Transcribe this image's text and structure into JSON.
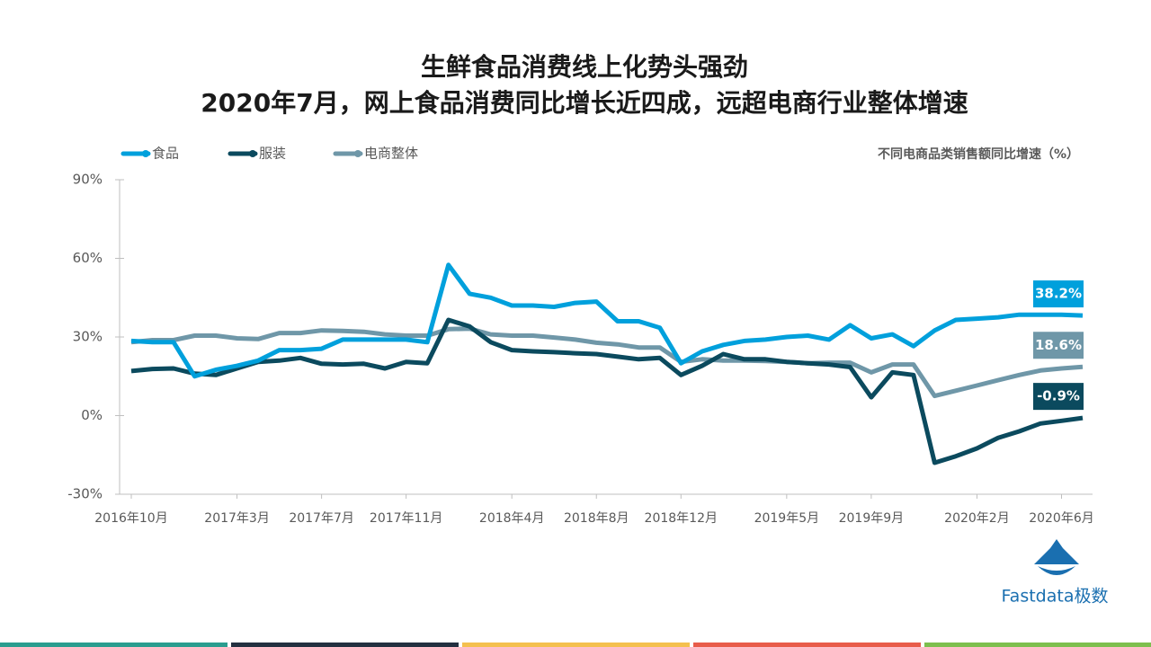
{
  "chart_data": {
    "type": "line",
    "title": "生鲜食品消费线上化势头强劲",
    "subtitle": "2020年7月，网上食品消费同比增长近四成，远超电商行业整体增速",
    "axis_note": "不同电商品类销售额同比增速（%）",
    "brand": "Fastdata极数",
    "categories": [
      "2016年10月",
      null,
      null,
      null,
      null,
      "2017年3月",
      null,
      null,
      null,
      "2017年7月",
      null,
      null,
      null,
      "2017年11月",
      null,
      null,
      null,
      null,
      "2018年4月",
      null,
      null,
      null,
      "2018年8月",
      null,
      null,
      null,
      "2018年12月",
      null,
      null,
      null,
      null,
      "2019年5月",
      null,
      null,
      null,
      "2019年9月",
      null,
      null,
      null,
      null,
      "2020年2月",
      null,
      null,
      null,
      "2020年6月",
      null
    ],
    "series": [
      {
        "name": "食品",
        "color": "#00a0dc",
        "values": [
          28.5,
          28,
          28,
          15,
          17.5,
          19,
          21,
          25,
          25,
          25.5,
          29,
          29,
          29,
          29,
          28,
          57.5,
          46.5,
          45,
          42,
          42,
          41.5,
          43,
          43.5,
          36,
          36,
          33.5,
          20,
          24.5,
          27,
          28.5,
          29,
          30,
          30.5,
          29,
          34.5,
          29.5,
          31,
          26.5,
          32.5,
          36.5,
          37,
          37.5,
          38.5,
          38.5,
          38.5,
          38.2
        ],
        "value_labels": [
          null,
          null,
          null,
          null,
          null,
          null,
          null,
          null,
          null,
          null,
          null,
          null,
          null,
          null,
          null,
          null,
          null,
          null,
          null,
          null,
          null,
          null,
          null,
          null,
          null,
          null,
          null,
          null,
          null,
          null,
          null,
          null,
          null,
          null,
          null,
          null,
          null,
          null,
          null,
          null,
          null,
          null,
          null,
          null,
          null,
          "38.2%"
        ]
      },
      {
        "name": "服装",
        "color": "#0b4a5e",
        "values": [
          17,
          17.8,
          18,
          16,
          15.5,
          18,
          20.5,
          21,
          22,
          19.8,
          19.5,
          19.8,
          18,
          20.5,
          20,
          36.5,
          34,
          28,
          25,
          24.5,
          24.2,
          23.8,
          23.5,
          22.5,
          21.5,
          22,
          15.5,
          19,
          23.5,
          21.5,
          21.5,
          20.5,
          20,
          19.5,
          18.5,
          7,
          16.5,
          15.5,
          -18,
          -15.5,
          -12.5,
          -8.5,
          -6,
          -3,
          -2,
          -0.9
        ],
        "value_labels": [
          null,
          null,
          null,
          null,
          null,
          null,
          null,
          null,
          null,
          null,
          null,
          null,
          null,
          null,
          null,
          null,
          null,
          null,
          null,
          null,
          null,
          null,
          null,
          null,
          null,
          null,
          null,
          null,
          null,
          null,
          null,
          null,
          null,
          null,
          null,
          null,
          null,
          null,
          null,
          null,
          null,
          null,
          null,
          null,
          null,
          "-0.9%"
        ]
      },
      {
        "name": "电商整体",
        "color": "#6f97a8",
        "values": [
          28,
          28.8,
          28.8,
          30.5,
          30.5,
          29.5,
          29.2,
          31.5,
          31.5,
          32.5,
          32.3,
          32,
          31,
          30.5,
          30.5,
          33,
          33.2,
          31,
          30.5,
          30.5,
          29.8,
          29,
          27.8,
          27.2,
          26,
          26,
          20.5,
          21.5,
          21,
          21,
          20.8,
          20.5,
          20,
          20.2,
          20.2,
          16.5,
          19.5,
          19.5,
          7.5,
          9.5,
          11.5,
          13.5,
          15.5,
          17.2,
          18,
          18.6
        ],
        "value_labels": [
          null,
          null,
          null,
          null,
          null,
          null,
          null,
          null,
          null,
          null,
          null,
          null,
          null,
          null,
          null,
          null,
          null,
          null,
          null,
          null,
          null,
          null,
          null,
          null,
          null,
          null,
          null,
          null,
          null,
          null,
          null,
          null,
          null,
          null,
          null,
          null,
          null,
          null,
          null,
          null,
          null,
          null,
          null,
          null,
          null,
          "18.6%"
        ]
      }
    ],
    "ylim": [
      -30,
      90
    ],
    "yticks": [
      {
        "value": -30,
        "label": "-30%"
      },
      {
        "value": 0,
        "label": "0%"
      },
      {
        "value": 30,
        "label": "30%"
      },
      {
        "value": 60,
        "label": "60%"
      },
      {
        "value": 90,
        "label": "90%"
      }
    ]
  }
}
